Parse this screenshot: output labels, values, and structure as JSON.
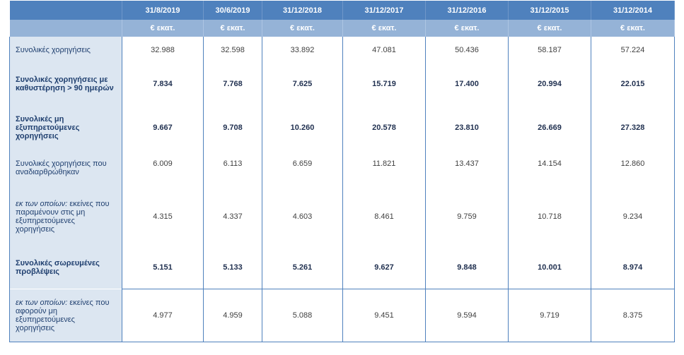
{
  "columns": [
    "31/8/2019",
    "30/6/2019",
    "31/12/2018",
    "31/12/2017",
    "31/12/2016",
    "31/12/2015",
    "31/12/2014"
  ],
  "unit": "€ εκατ.",
  "rows": [
    {
      "label": "Συνολικές χορηγήσεις",
      "bold": false,
      "values": [
        "32.988",
        "32.598",
        "33.892",
        "47.081",
        "50.436",
        "58.187",
        "57.224"
      ]
    },
    {
      "label": "Συνολικές χορηγήσεις με καθυστέρηση > 90 ημερών",
      "bold": true,
      "values": [
        "7.834",
        "7.768",
        "7.625",
        "15.719",
        "17.400",
        "20.994",
        "22.015"
      ]
    },
    {
      "label": "Συνολικές μη εξυπηρετούμενες χορηγήσεις",
      "bold": true,
      "values": [
        "9.667",
        "9.708",
        "10.260",
        "20.578",
        "23.810",
        "26.669",
        "27.328"
      ]
    },
    {
      "label": "Συνολικές χορηγήσεις που αναδιαρθρώθηκαν",
      "bold": false,
      "values": [
        "6.009",
        "6.113",
        "6.659",
        "11.821",
        "13.437",
        "14.154",
        "12.860"
      ]
    },
    {
      "label_italic": "εκ των οποίων:",
      "label": " εκείνες που παραμένουν στις μη εξυπηρετούμενες χορηγήσεις",
      "bold": false,
      "values": [
        "4.315",
        "4.337",
        "4.603",
        "8.461",
        "9.759",
        "10.718",
        "9.234"
      ]
    },
    {
      "label": "Συνολικές σωρευμένες προβλέψεις",
      "bold": true,
      "values": [
        "5.151",
        "5.133",
        "5.261",
        "9.627",
        "9.848",
        "10.001",
        "8.974"
      ]
    },
    {
      "label_italic": "εκ των οποίων:",
      "label": " εκείνες που αφορούν μη εξυπηρετούμενες χορηγήσεις",
      "bold": false,
      "values": [
        "4.977",
        "4.959",
        "5.088",
        "9.451",
        "9.594",
        "9.719",
        "8.375"
      ]
    }
  ]
}
